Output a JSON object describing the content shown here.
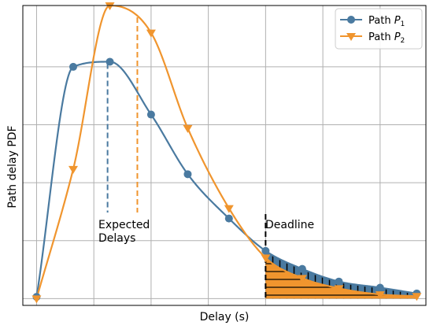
{
  "chart_data": {
    "type": "line",
    "title": "",
    "xlabel": "Delay (s)",
    "ylabel": "Path delay PDF",
    "xlim": [
      -0.3,
      8.5
    ],
    "ylim": [
      -0.02,
      0.86
    ],
    "grid": true,
    "legend_position": "top-right",
    "series": [
      {
        "name_prefix": "Path ",
        "name_var": "P",
        "name_sub": "1",
        "color": "#4a7aa0",
        "marker": "circle",
        "x": [
          0.0,
          0.8,
          1.6,
          2.5,
          3.3,
          4.2,
          5.0,
          5.8,
          6.6,
          7.5,
          8.3
        ],
        "y": [
          0.005,
          0.68,
          0.695,
          0.54,
          0.365,
          0.235,
          0.14,
          0.087,
          0.05,
          0.032,
          0.015
        ],
        "expected_delay": 1.55
      },
      {
        "name_prefix": "Path ",
        "name_var": "P",
        "name_sub": "2",
        "color": "#f0952e",
        "marker": "triangle-down",
        "x": [
          0.0,
          0.8,
          1.6,
          2.5,
          3.3,
          4.2,
          5.0,
          5.8,
          6.6,
          7.5,
          8.3
        ],
        "y": [
          0.0,
          0.38,
          0.86,
          0.78,
          0.5,
          0.265,
          0.12,
          0.06,
          0.03,
          0.012,
          0.007
        ],
        "expected_delay": 2.2
      }
    ],
    "annotations": {
      "expected_line1": "Expected",
      "expected_line2": "Delays",
      "deadline": "Deadline",
      "deadline_x": 5.0
    }
  }
}
